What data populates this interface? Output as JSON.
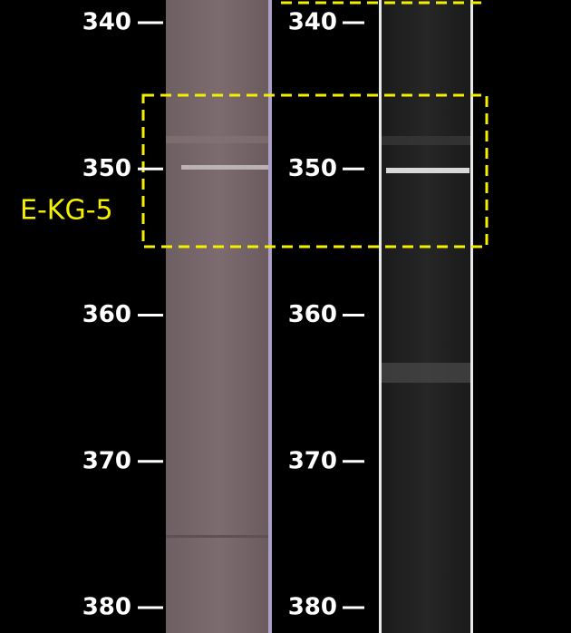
{
  "scale": {
    "ticks": [
      340,
      350,
      360,
      370,
      380
    ]
  },
  "annotation": {
    "label": "E-KG-5"
  }
}
